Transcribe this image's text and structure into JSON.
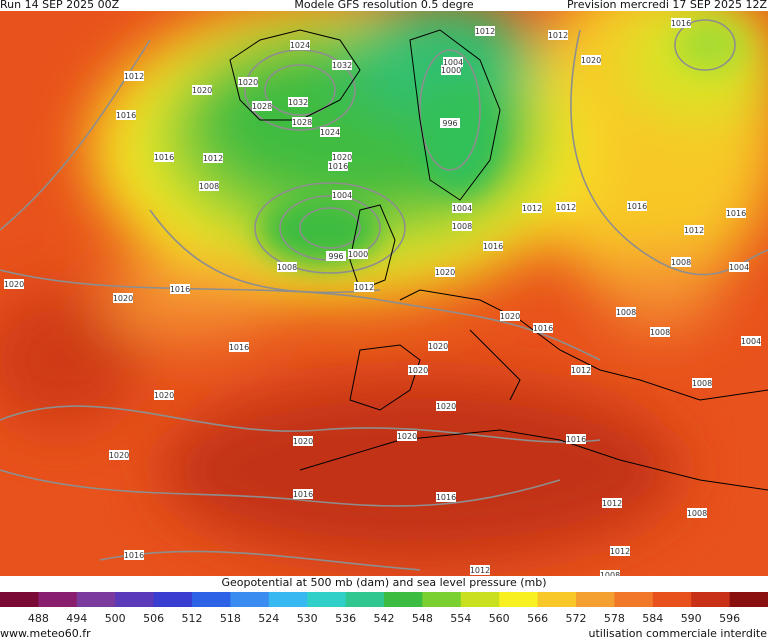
{
  "header": {
    "run": "Run 14 SEP 2025 00Z",
    "model": "Modele GFS resolution 0.5 degre",
    "forecast": "Prevision mercredi 17 SEP 2025 12Z"
  },
  "map": {
    "isobar_labels": [
      "1012",
      "1012",
      "1016",
      "1024",
      "1032",
      "1004",
      "1000",
      "1012",
      "1020",
      "1020",
      "1020",
      "1028",
      "1032",
      "1016",
      "1028",
      "996",
      "1024",
      "1020",
      "1016",
      "1016",
      "1012",
      "1008",
      "1004",
      "1004",
      "1008",
      "1012",
      "1012",
      "1016",
      "1016",
      "1012",
      "996",
      "1000",
      "1016",
      "1008",
      "1008",
      "1004",
      "1020",
      "1020",
      "1020",
      "1016",
      "1012",
      "1020",
      "1016",
      "1008",
      "1008",
      "1004",
      "1016",
      "1020",
      "1020",
      "1012",
      "1008",
      "1020",
      "1020",
      "1020",
      "1016",
      "1020",
      "1020",
      "1016",
      "1016",
      "1012",
      "1008",
      "1012",
      "1016",
      "1012",
      "1008"
    ]
  },
  "legend": {
    "title": "Geopotential at 500 mb (dam) and sea level pressure (mb)",
    "ticks": [
      "488",
      "494",
      "500",
      "506",
      "512",
      "518",
      "524",
      "530",
      "536",
      "542",
      "548",
      "554",
      "560",
      "566",
      "572",
      "578",
      "584",
      "590",
      "596"
    ],
    "colors": [
      "#7a0a35",
      "#8a1e6e",
      "#7a3a9e",
      "#5a3ab8",
      "#3a3ed0",
      "#2e62e6",
      "#3a8cf0",
      "#38b8f0",
      "#30d0c8",
      "#30c890",
      "#3cbc40",
      "#7ad030",
      "#c8e020",
      "#f8f020",
      "#f8c828",
      "#f4a030",
      "#f07828",
      "#e8501c",
      "#c83018",
      "#8a1010"
    ]
  },
  "footer": {
    "site": "www.meteo60.fr",
    "notice": "utilisation commerciale interdite"
  }
}
